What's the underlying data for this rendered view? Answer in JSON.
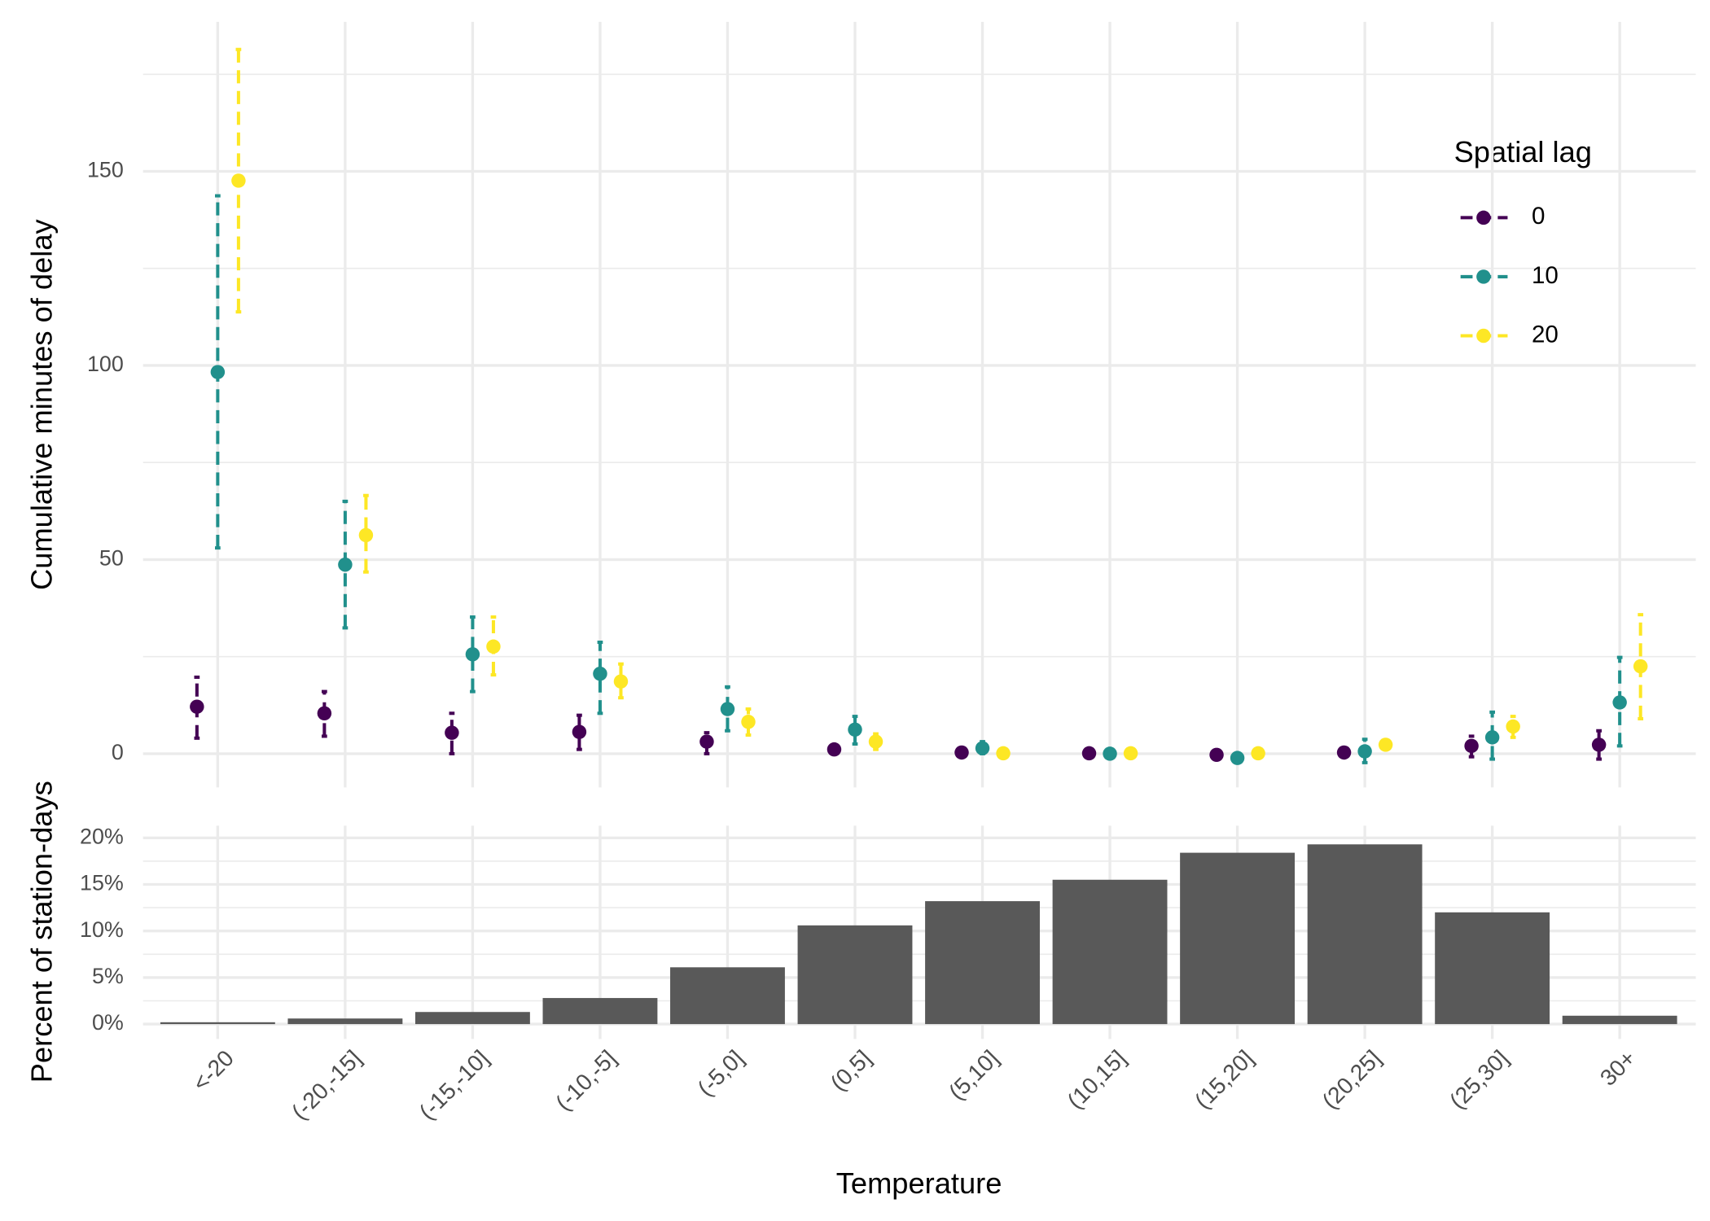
{
  "chart_data": [
    {
      "type": "point",
      "y_label": "Cumulative minutes of delay",
      "legend_title": "Spatial lag",
      "legend_position": "top-right",
      "ylim": [
        -8.7,
        188.5
      ],
      "yticks": [
        0,
        50,
        100,
        150
      ],
      "minor_yticks": [
        25,
        75,
        125,
        175
      ],
      "grid": true,
      "series": [
        {
          "name": "0",
          "color": "#440154",
          "values": [
            12.1,
            10.4,
            5.4,
            5.6,
            3.1,
            1.1,
            0.3,
            0.1,
            -0.3,
            0.3,
            2.0,
            2.3
          ],
          "lower": [
            4.0,
            4.5,
            0,
            1.1,
            0,
            0.5,
            -0.5,
            -0.3,
            -0.8,
            -0.3,
            -0.8,
            -1.4
          ],
          "upper": [
            19.7,
            16.0,
            10.4,
            9.9,
            5.4,
            1.7,
            1.0,
            0.5,
            0.2,
            0.9,
            4.5,
            5.9
          ]
        },
        {
          "name": "10",
          "color": "#21908C",
          "values": [
            98.3,
            48.7,
            25.6,
            20.6,
            11.5,
            6.2,
            1.4,
            0,
            -1.1,
            0.6,
            4.2,
            13.2
          ],
          "lower": [
            53.0,
            32.4,
            16.0,
            10.4,
            5.9,
            2.5,
            0,
            -0.5,
            -1.8,
            -2.3,
            -1.4,
            2.0
          ],
          "upper": [
            143.7,
            65.0,
            35.2,
            28.7,
            17.2,
            9.6,
            3.1,
            0.5,
            -0.4,
            3.7,
            10.7,
            24.8
          ]
        },
        {
          "name": "20",
          "color": "#FDE725",
          "values": [
            147.6,
            56.3,
            27.6,
            18.6,
            8.2,
            3.1,
            0.1,
            0.1,
            0.1,
            2.3,
            7.0,
            22.5
          ],
          "lower": [
            113.8,
            46.8,
            20.3,
            14.4,
            4.8,
            1.1,
            -0.3,
            -0.3,
            -0.3,
            1.7,
            4.2,
            9.0
          ],
          "upper": [
            181.4,
            66.5,
            35.2,
            23.1,
            11.5,
            5.1,
            0.5,
            0.5,
            0.5,
            2.8,
            9.6,
            35.8
          ]
        }
      ]
    },
    {
      "type": "bar",
      "x_label": "Temperature",
      "y_label": "Percent of station-days",
      "categories": [
        "<-20",
        "(-20,-15]",
        "(-15,-10]",
        "(-10,-5]",
        "(-5,0]",
        "(0,5]",
        "(5,10]",
        "(10,15]",
        "(15,20]",
        "(20,25]",
        "(25,30]",
        "30+"
      ],
      "values": [
        0.2,
        0.6,
        1.3,
        2.8,
        6.1,
        10.6,
        13.2,
        15.5,
        18.4,
        19.3,
        12.0,
        0.9
      ],
      "color": "#595959",
      "ylim": [
        -1.6,
        21.3
      ],
      "yticks": [
        {
          "value": 0,
          "label": "0%"
        },
        {
          "value": 5,
          "label": "5%"
        },
        {
          "value": 10,
          "label": "10%"
        },
        {
          "value": 15,
          "label": "15%"
        },
        {
          "value": 20,
          "label": "20%"
        }
      ],
      "minor_yticks": [
        2.5,
        7.5,
        12.5,
        17.5
      ],
      "grid": true
    }
  ]
}
